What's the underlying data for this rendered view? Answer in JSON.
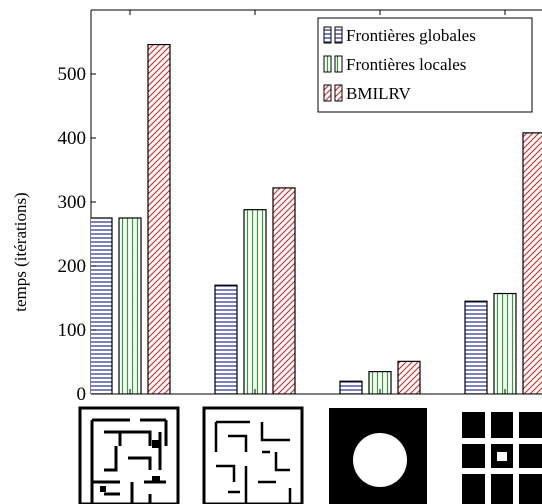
{
  "chart_data": {
    "type": "bar",
    "ylabel": "temps (itérations)",
    "ylim": [
      0,
      600
    ],
    "yticks": [
      0,
      100,
      200,
      300,
      400,
      500
    ],
    "categories": [
      "labyrinthe complexe",
      "labyrinthe simple",
      "obstacle circulaire",
      "grille de blocs"
    ],
    "series": [
      {
        "name": "Frontières globales",
        "pattern": "horizontal-lines",
        "color": "#1f2f8f",
        "values": [
          275,
          170,
          20,
          145
        ]
      },
      {
        "name": "Frontières locales",
        "pattern": "vertical-lines",
        "color": "#22aa22",
        "values": [
          275,
          288,
          35,
          157
        ]
      },
      {
        "name": "BMILRV",
        "pattern": "diagonal-lines",
        "color": "#e02020",
        "values": [
          546,
          322,
          51,
          408
        ]
      }
    ],
    "legend_position": "top-right",
    "grid": false
  }
}
